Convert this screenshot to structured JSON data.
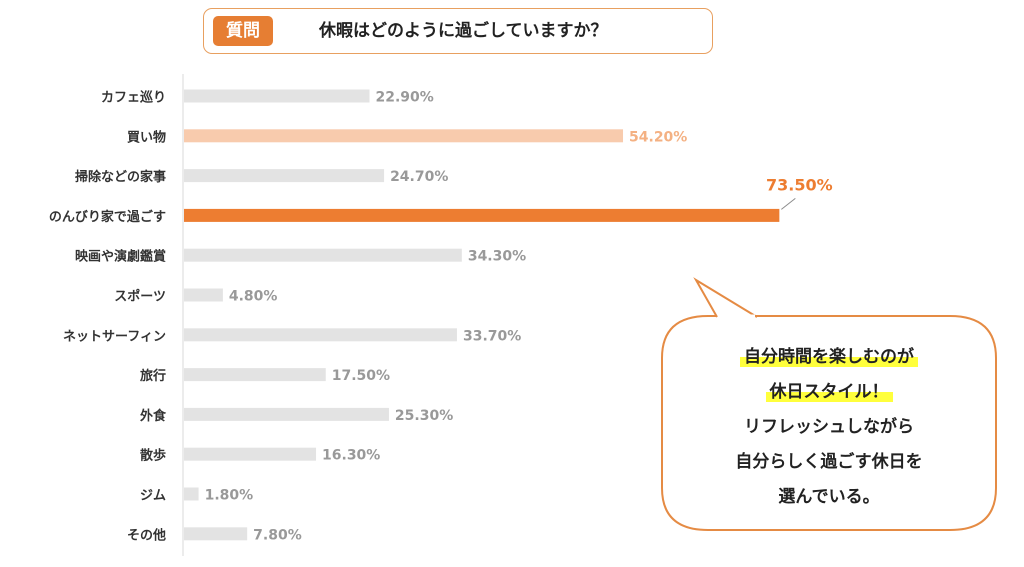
{
  "question": {
    "tag": "質問",
    "text": "休暇はどのように過ごしていますか？"
  },
  "chart_data": {
    "type": "bar",
    "orientation": "horizontal",
    "categories": [
      "カフェ巡り",
      "買い物",
      "掃除などの家事",
      "のんびり家で過ごす",
      "映画や演劇鑑賞",
      "スポーツ",
      "ネットサーフィン",
      "旅行",
      "外食",
      "散歩",
      "ジム",
      "その他"
    ],
    "values": [
      22.9,
      54.2,
      24.7,
      73.5,
      34.3,
      4.8,
      33.7,
      17.5,
      25.3,
      16.3,
      1.8,
      7.8
    ],
    "labels": [
      "22.90%",
      "54.20%",
      "24.70%",
      "73.50%",
      "34.30%",
      "4.80%",
      "33.70%",
      "17.50%",
      "25.30%",
      "16.30%",
      "1.80%",
      "7.80%"
    ],
    "xlim": [
      0,
      100
    ],
    "highlight_index": 3,
    "secondary_index": 1,
    "colors": {
      "default": "#e3e3e3",
      "highlight": "#ed7d31",
      "secondary": "#f8cbad",
      "label": "#999999",
      "highlight_label": "#ed7d31",
      "secondary_label": "#f4b183"
    }
  },
  "bubble": {
    "lines": [
      "自分時間を楽しむのが",
      "休日スタイル！",
      "リフレッシュしながら",
      "自分らしく過ごす休日を",
      "選んでいる。"
    ],
    "highlighted": [
      true,
      true,
      false,
      false,
      false
    ],
    "border_color": "#e58b44"
  }
}
